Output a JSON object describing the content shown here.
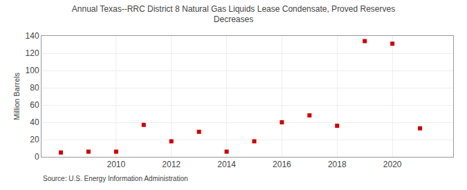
{
  "chart_data": {
    "type": "scatter",
    "title": "Annual Texas--RRC District 8 Natural Gas Liquids Lease Condensate, Proved Reserves\nDecreases",
    "ylabel": "Million Barrels",
    "annotations": [
      "Source: U.S. Energy Information Administration"
    ],
    "x": [
      2008,
      2009,
      2010,
      2011,
      2012,
      2013,
      2014,
      2015,
      2016,
      2017,
      2018,
      2019,
      2020,
      2021
    ],
    "values": [
      5,
      6,
      6,
      37,
      18,
      29,
      6,
      18,
      40,
      48,
      36,
      134,
      131,
      33
    ],
    "color": "#cc0000",
    "marker": "square",
    "xlim": [
      2007.3,
      2022.2
    ],
    "xticks": [
      2010,
      2012,
      2014,
      2016,
      2018,
      2020
    ],
    "ylim": [
      0,
      140
    ],
    "yticks": [
      0,
      20,
      40,
      60,
      80,
      100,
      120,
      140
    ],
    "grid": true
  }
}
